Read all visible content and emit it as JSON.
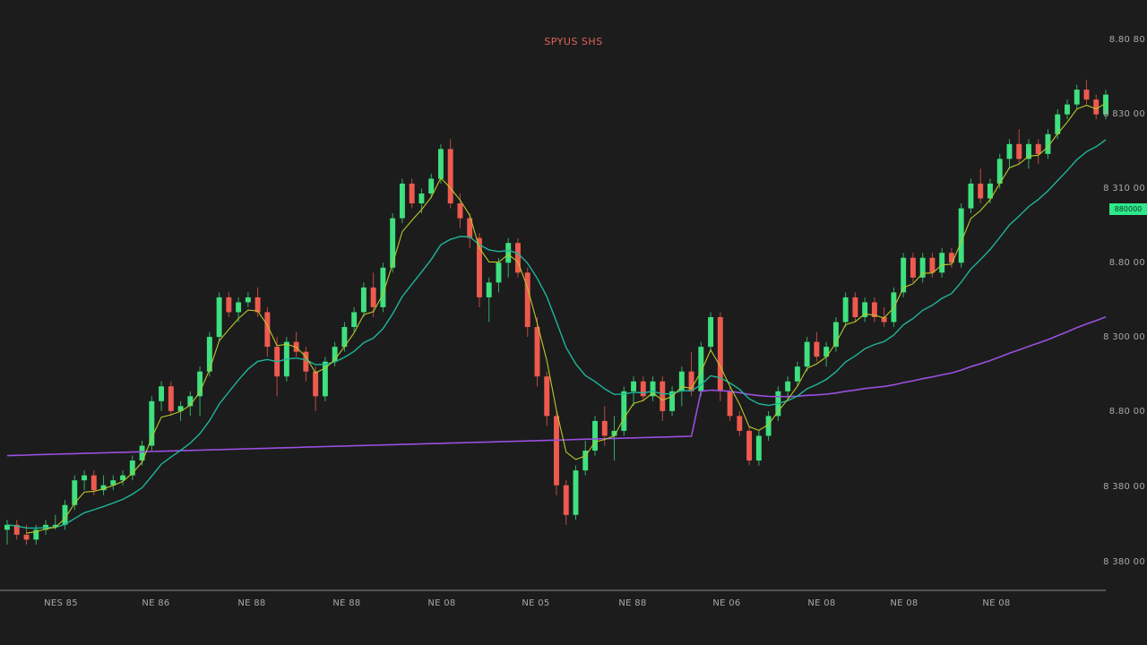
{
  "chart_data": {
    "type": "candlestick",
    "title": "SPYUS SHS",
    "y_tick_labels": [
      "8.80 80",
      "8 830 00",
      "8 310 00",
      "8.80 00",
      "8 300 00",
      "8.80 00",
      "8 380 00",
      "8 380 00"
    ],
    "x_tick_labels": [
      "NES 85",
      "NE 86",
      "NE 88",
      "NE 88",
      "NE 08",
      "NE 05",
      "NE 88",
      "NE 06",
      "NE 08",
      "NE 08",
      "NE 08"
    ],
    "ylim": [
      0,
      100
    ],
    "last_price_label": "880000",
    "colors": {
      "up": "#3ee07f",
      "down": "#ef5a4e",
      "ma_fast": "#b8c82a",
      "ma_mid": "#1fb59a",
      "ma_slow": "#9b4fe0",
      "badge": "#2ee88a",
      "background": "#1c1c1c"
    },
    "candles": [
      {
        "o": 7,
        "h": 9,
        "l": 4,
        "c": 8
      },
      {
        "o": 8,
        "h": 9,
        "l": 5,
        "c": 6
      },
      {
        "o": 6,
        "h": 8,
        "l": 4,
        "c": 5
      },
      {
        "o": 5,
        "h": 8,
        "l": 4,
        "c": 7
      },
      {
        "o": 7,
        "h": 9,
        "l": 6,
        "c": 8
      },
      {
        "o": 8,
        "h": 10,
        "l": 7,
        "c": 8
      },
      {
        "o": 8,
        "h": 13,
        "l": 7,
        "c": 12
      },
      {
        "o": 12,
        "h": 18,
        "l": 11,
        "c": 17
      },
      {
        "o": 17,
        "h": 19,
        "l": 15,
        "c": 18
      },
      {
        "o": 18,
        "h": 19,
        "l": 14,
        "c": 15
      },
      {
        "o": 15,
        "h": 18,
        "l": 14,
        "c": 16
      },
      {
        "o": 16,
        "h": 18,
        "l": 15,
        "c": 17
      },
      {
        "o": 17,
        "h": 19,
        "l": 16,
        "c": 18
      },
      {
        "o": 18,
        "h": 22,
        "l": 17,
        "c": 21
      },
      {
        "o": 21,
        "h": 25,
        "l": 20,
        "c": 24
      },
      {
        "o": 24,
        "h": 34,
        "l": 23,
        "c": 33
      },
      {
        "o": 33,
        "h": 37,
        "l": 31,
        "c": 36
      },
      {
        "o": 36,
        "h": 37,
        "l": 30,
        "c": 31
      },
      {
        "o": 31,
        "h": 33,
        "l": 29,
        "c": 32
      },
      {
        "o": 32,
        "h": 35,
        "l": 30,
        "c": 34
      },
      {
        "o": 34,
        "h": 40,
        "l": 30,
        "c": 39
      },
      {
        "o": 39,
        "h": 47,
        "l": 38,
        "c": 46
      },
      {
        "o": 46,
        "h": 55,
        "l": 45,
        "c": 54
      },
      {
        "o": 54,
        "h": 55,
        "l": 50,
        "c": 51
      },
      {
        "o": 51,
        "h": 54,
        "l": 49,
        "c": 53
      },
      {
        "o": 53,
        "h": 55,
        "l": 52,
        "c": 54
      },
      {
        "o": 54,
        "h": 56,
        "l": 50,
        "c": 51
      },
      {
        "o": 51,
        "h": 52,
        "l": 42,
        "c": 44
      },
      {
        "o": 44,
        "h": 46,
        "l": 34,
        "c": 38
      },
      {
        "o": 38,
        "h": 46,
        "l": 37,
        "c": 45
      },
      {
        "o": 45,
        "h": 47,
        "l": 42,
        "c": 43
      },
      {
        "o": 43,
        "h": 44,
        "l": 37,
        "c": 39
      },
      {
        "o": 39,
        "h": 40,
        "l": 31,
        "c": 34
      },
      {
        "o": 34,
        "h": 42,
        "l": 33,
        "c": 41
      },
      {
        "o": 41,
        "h": 45,
        "l": 40,
        "c": 44
      },
      {
        "o": 44,
        "h": 49,
        "l": 43,
        "c": 48
      },
      {
        "o": 48,
        "h": 52,
        "l": 47,
        "c": 51
      },
      {
        "o": 51,
        "h": 57,
        "l": 50,
        "c": 56
      },
      {
        "o": 56,
        "h": 59,
        "l": 50,
        "c": 52
      },
      {
        "o": 52,
        "h": 61,
        "l": 51,
        "c": 60
      },
      {
        "o": 60,
        "h": 71,
        "l": 59,
        "c": 70
      },
      {
        "o": 70,
        "h": 78,
        "l": 69,
        "c": 77
      },
      {
        "o": 77,
        "h": 78,
        "l": 72,
        "c": 73
      },
      {
        "o": 73,
        "h": 76,
        "l": 71,
        "c": 75
      },
      {
        "o": 75,
        "h": 79,
        "l": 74,
        "c": 78
      },
      {
        "o": 78,
        "h": 85,
        "l": 77,
        "c": 84
      },
      {
        "o": 84,
        "h": 86,
        "l": 72,
        "c": 73
      },
      {
        "o": 73,
        "h": 75,
        "l": 68,
        "c": 70
      },
      {
        "o": 70,
        "h": 71,
        "l": 64,
        "c": 66
      },
      {
        "o": 66,
        "h": 67,
        "l": 52,
        "c": 54
      },
      {
        "o": 54,
        "h": 58,
        "l": 49,
        "c": 57
      },
      {
        "o": 57,
        "h": 62,
        "l": 55,
        "c": 61
      },
      {
        "o": 61,
        "h": 66,
        "l": 58,
        "c": 65
      },
      {
        "o": 65,
        "h": 66,
        "l": 58,
        "c": 59
      },
      {
        "o": 59,
        "h": 60,
        "l": 46,
        "c": 48
      },
      {
        "o": 48,
        "h": 50,
        "l": 36,
        "c": 38
      },
      {
        "o": 38,
        "h": 39,
        "l": 28,
        "c": 30
      },
      {
        "o": 30,
        "h": 31,
        "l": 14,
        "c": 16
      },
      {
        "o": 16,
        "h": 17,
        "l": 8,
        "c": 10
      },
      {
        "o": 10,
        "h": 20,
        "l": 9,
        "c": 19
      },
      {
        "o": 19,
        "h": 25,
        "l": 18,
        "c": 23
      },
      {
        "o": 23,
        "h": 30,
        "l": 22,
        "c": 29
      },
      {
        "o": 29,
        "h": 32,
        "l": 24,
        "c": 26
      },
      {
        "o": 26,
        "h": 30,
        "l": 21,
        "c": 27
      },
      {
        "o": 27,
        "h": 36,
        "l": 26,
        "c": 35
      },
      {
        "o": 35,
        "h": 38,
        "l": 32,
        "c": 37
      },
      {
        "o": 37,
        "h": 38,
        "l": 33,
        "c": 34
      },
      {
        "o": 34,
        "h": 38,
        "l": 33,
        "c": 37
      },
      {
        "o": 37,
        "h": 38,
        "l": 29,
        "c": 31
      },
      {
        "o": 31,
        "h": 36,
        "l": 30,
        "c": 35
      },
      {
        "o": 35,
        "h": 40,
        "l": 32,
        "c": 39
      },
      {
        "o": 39,
        "h": 43,
        "l": 34,
        "c": 35
      },
      {
        "o": 35,
        "h": 45,
        "l": 34,
        "c": 44
      },
      {
        "o": 44,
        "h": 51,
        "l": 43,
        "c": 50
      },
      {
        "o": 50,
        "h": 51,
        "l": 33,
        "c": 35
      },
      {
        "o": 35,
        "h": 36,
        "l": 29,
        "c": 30
      },
      {
        "o": 30,
        "h": 31,
        "l": 26,
        "c": 27
      },
      {
        "o": 27,
        "h": 28,
        "l": 20,
        "c": 21
      },
      {
        "o": 21,
        "h": 27,
        "l": 20,
        "c": 26
      },
      {
        "o": 26,
        "h": 31,
        "l": 25,
        "c": 30
      },
      {
        "o": 30,
        "h": 36,
        "l": 29,
        "c": 35
      },
      {
        "o": 35,
        "h": 38,
        "l": 33,
        "c": 37
      },
      {
        "o": 37,
        "h": 41,
        "l": 36,
        "c": 40
      },
      {
        "o": 40,
        "h": 46,
        "l": 39,
        "c": 45
      },
      {
        "o": 45,
        "h": 47,
        "l": 41,
        "c": 42
      },
      {
        "o": 42,
        "h": 45,
        "l": 40,
        "c": 44
      },
      {
        "o": 44,
        "h": 50,
        "l": 43,
        "c": 49
      },
      {
        "o": 49,
        "h": 55,
        "l": 48,
        "c": 54
      },
      {
        "o": 54,
        "h": 55,
        "l": 49,
        "c": 50
      },
      {
        "o": 50,
        "h": 54,
        "l": 49,
        "c": 53
      },
      {
        "o": 53,
        "h": 54,
        "l": 49,
        "c": 50
      },
      {
        "o": 50,
        "h": 52,
        "l": 48,
        "c": 49
      },
      {
        "o": 49,
        "h": 56,
        "l": 48,
        "c": 55
      },
      {
        "o": 55,
        "h": 63,
        "l": 54,
        "c": 62
      },
      {
        "o": 62,
        "h": 63,
        "l": 57,
        "c": 58
      },
      {
        "o": 58,
        "h": 63,
        "l": 57,
        "c": 62
      },
      {
        "o": 62,
        "h": 63,
        "l": 58,
        "c": 59
      },
      {
        "o": 59,
        "h": 64,
        "l": 58,
        "c": 63
      },
      {
        "o": 63,
        "h": 64,
        "l": 60,
        "c": 61
      },
      {
        "o": 61,
        "h": 73,
        "l": 60,
        "c": 72
      },
      {
        "o": 72,
        "h": 78,
        "l": 71,
        "c": 77
      },
      {
        "o": 77,
        "h": 80,
        "l": 73,
        "c": 74
      },
      {
        "o": 74,
        "h": 78,
        "l": 73,
        "c": 77
      },
      {
        "o": 77,
        "h": 83,
        "l": 76,
        "c": 82
      },
      {
        "o": 82,
        "h": 86,
        "l": 80,
        "c": 85
      },
      {
        "o": 85,
        "h": 88,
        "l": 81,
        "c": 82
      },
      {
        "o": 82,
        "h": 86,
        "l": 80,
        "c": 85
      },
      {
        "o": 85,
        "h": 86,
        "l": 81,
        "c": 83
      },
      {
        "o": 83,
        "h": 88,
        "l": 82,
        "c": 87
      },
      {
        "o": 87,
        "h": 92,
        "l": 86,
        "c": 91
      },
      {
        "o": 91,
        "h": 94,
        "l": 90,
        "c": 93
      },
      {
        "o": 93,
        "h": 97,
        "l": 92,
        "c": 96
      },
      {
        "o": 96,
        "h": 98,
        "l": 93,
        "c": 94
      },
      {
        "o": 94,
        "h": 95,
        "l": 90,
        "c": 91
      },
      {
        "o": 91,
        "h": 96,
        "l": 90,
        "c": 95
      }
    ]
  }
}
